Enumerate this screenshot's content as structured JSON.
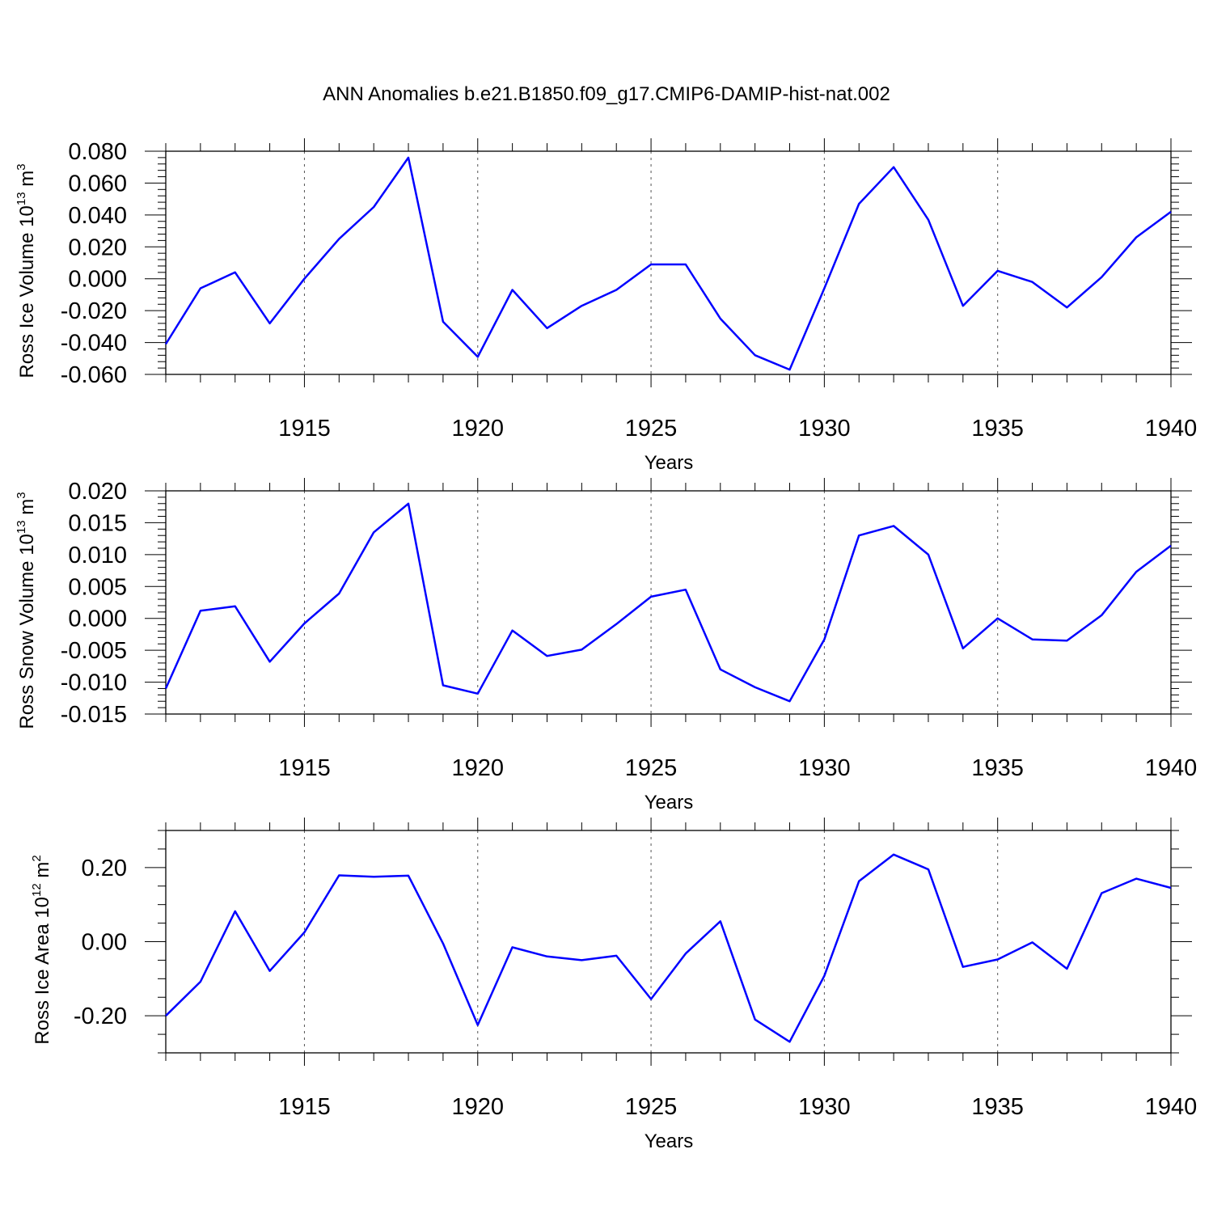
{
  "title": "ANN Anomalies b.e21.B1850.f09_g17.CMIP6-DAMIP-hist-nat.002",
  "colors": {
    "line": "#0000ff",
    "grid": "#555555",
    "axis": "#000000"
  },
  "chart_data": [
    {
      "type": "line",
      "ylabel": {
        "base": "Ross Ice Volume 10",
        "exp": "13",
        "unit": " m",
        "unit_exp": "3"
      },
      "xlabel": "Years",
      "xlim": [
        1911,
        1940
      ],
      "ylim": [
        -0.06,
        0.08
      ],
      "yticks": [
        -0.06,
        -0.04,
        -0.02,
        0.0,
        0.02,
        0.04,
        0.06,
        0.08
      ],
      "ytick_labels": [
        "-0.060",
        "-0.040",
        "-0.020",
        "0.000",
        "0.020",
        "0.040",
        "0.060",
        "0.080"
      ],
      "xticks": [
        1915,
        1920,
        1925,
        1930,
        1935,
        1940
      ],
      "xtick_labels": [
        "1915",
        "1920",
        "1925",
        "1930",
        "1935",
        "1940"
      ],
      "grid": "vertical dashed at labeled years",
      "x": [
        1911,
        1912,
        1913,
        1914,
        1915,
        1916,
        1917,
        1918,
        1919,
        1920,
        1921,
        1922,
        1923,
        1924,
        1925,
        1926,
        1927,
        1928,
        1929,
        1930,
        1931,
        1932,
        1933,
        1934,
        1935,
        1936,
        1937,
        1938,
        1939,
        1940
      ],
      "series": [
        {
          "values": [
            -0.041,
            -0.006,
            0.004,
            -0.028,
            0.0,
            0.025,
            0.045,
            0.076,
            -0.027,
            -0.049,
            -0.007,
            -0.031,
            -0.017,
            -0.007,
            0.009,
            0.009,
            -0.025,
            -0.048,
            -0.057,
            -0.006,
            0.047,
            0.07,
            0.037,
            -0.017,
            0.005,
            -0.002,
            -0.018,
            0.001,
            0.026,
            0.042
          ]
        }
      ]
    },
    {
      "type": "line",
      "ylabel": {
        "base": "Ross Snow Volume 10",
        "exp": "13",
        "unit": " m",
        "unit_exp": "3"
      },
      "xlabel": "Years",
      "xlim": [
        1911,
        1940
      ],
      "ylim": [
        -0.015,
        0.02
      ],
      "yticks": [
        -0.015,
        -0.01,
        -0.005,
        0.0,
        0.005,
        0.01,
        0.015,
        0.02
      ],
      "ytick_labels": [
        "-0.015",
        "-0.010",
        "-0.005",
        "0.000",
        "0.005",
        "0.010",
        "0.015",
        "0.020"
      ],
      "xticks": [
        1915,
        1920,
        1925,
        1930,
        1935,
        1940
      ],
      "xtick_labels": [
        "1915",
        "1920",
        "1925",
        "1930",
        "1935",
        "1940"
      ],
      "grid": "vertical dashed at labeled years",
      "x": [
        1911,
        1912,
        1913,
        1914,
        1915,
        1916,
        1917,
        1918,
        1919,
        1920,
        1921,
        1922,
        1923,
        1924,
        1925,
        1926,
        1927,
        1928,
        1929,
        1930,
        1931,
        1932,
        1933,
        1934,
        1935,
        1936,
        1937,
        1938,
        1939,
        1940
      ],
      "series": [
        {
          "values": [
            -0.011,
            0.0012,
            0.0019,
            -0.0068,
            -0.0008,
            0.0039,
            0.0135,
            0.018,
            -0.0105,
            -0.0118,
            -0.0019,
            -0.0059,
            -0.0049,
            -0.0009,
            0.0034,
            0.0045,
            -0.008,
            -0.0108,
            -0.013,
            -0.0033,
            0.013,
            0.0145,
            0.01,
            -0.0047,
            0.0,
            -0.0033,
            -0.0035,
            0.0005,
            0.0073,
            0.0114
          ]
        }
      ]
    },
    {
      "type": "line",
      "ylabel": {
        "base": "Ross Ice Area 10",
        "exp": "12",
        "unit": " m",
        "unit_exp": "2"
      },
      "xlabel": "Years",
      "xlim": [
        1911,
        1940
      ],
      "ylim": [
        -0.3,
        0.3
      ],
      "yticks": [
        -0.2,
        0.0,
        0.2
      ],
      "ytick_labels": [
        "-0.20",
        "0.00",
        "0.20"
      ],
      "yminor": [
        -0.3,
        -0.25,
        -0.15,
        -0.1,
        -0.05,
        0.05,
        0.1,
        0.15,
        0.25,
        0.3
      ],
      "xticks": [
        1915,
        1920,
        1925,
        1930,
        1935,
        1940
      ],
      "xtick_labels": [
        "1915",
        "1920",
        "1925",
        "1930",
        "1935",
        "1940"
      ],
      "grid": "vertical dashed at labeled years",
      "x": [
        1911,
        1912,
        1913,
        1914,
        1915,
        1916,
        1917,
        1918,
        1919,
        1920,
        1921,
        1922,
        1923,
        1924,
        1925,
        1926,
        1927,
        1928,
        1929,
        1930,
        1931,
        1932,
        1933,
        1934,
        1935,
        1936,
        1937,
        1938,
        1939,
        1940
      ],
      "series": [
        {
          "values": [
            -0.2,
            -0.108,
            0.082,
            -0.079,
            0.025,
            0.179,
            0.175,
            0.178,
            -0.005,
            -0.225,
            -0.015,
            -0.04,
            -0.05,
            -0.038,
            -0.155,
            -0.032,
            0.055,
            -0.21,
            -0.27,
            -0.092,
            0.163,
            0.235,
            0.195,
            -0.068,
            -0.048,
            -0.002,
            -0.073,
            0.131,
            0.17,
            0.145
          ]
        }
      ]
    }
  ]
}
